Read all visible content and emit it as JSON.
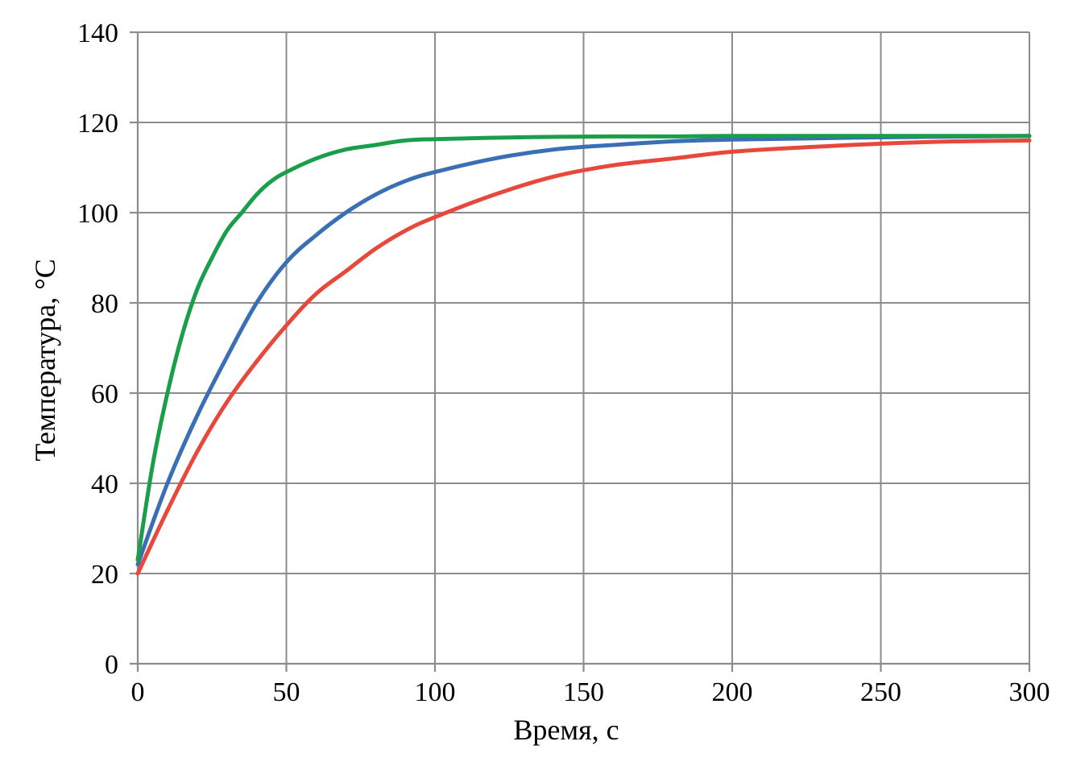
{
  "chart_data": {
    "type": "line",
    "title": "",
    "xlabel": "Время, с",
    "ylabel": "Температура, °C",
    "xlim": [
      0,
      300
    ],
    "ylim": [
      0,
      140
    ],
    "x_ticks": [
      0,
      50,
      100,
      150,
      200,
      250,
      300
    ],
    "y_ticks": [
      0,
      20,
      40,
      60,
      80,
      100,
      120,
      140
    ],
    "grid": true,
    "legend": "none",
    "series": [
      {
        "color": "#1a9e4a",
        "x": [
          0,
          5,
          10,
          15,
          20,
          25,
          30,
          35,
          40,
          45,
          50,
          60,
          70,
          80,
          90,
          100,
          120,
          140,
          160,
          180,
          200,
          250,
          300
        ],
        "values": [
          23,
          44,
          60,
          73,
          83,
          90,
          96,
          100,
          104,
          107,
          109,
          112,
          114,
          115,
          116,
          116.3,
          116.6,
          116.8,
          116.9,
          116.9,
          117,
          117,
          117
        ]
      },
      {
        "color": "#3a6fb5",
        "x": [
          0,
          10,
          20,
          30,
          40,
          50,
          60,
          70,
          80,
          90,
          100,
          120,
          140,
          160,
          180,
          200,
          250,
          300
        ],
        "values": [
          22,
          40,
          55,
          68,
          80,
          89,
          95,
          100,
          104,
          107,
          109,
          112,
          114,
          115,
          115.8,
          116.2,
          116.7,
          117
        ]
      },
      {
        "color": "#e8483c",
        "x": [
          0,
          10,
          20,
          30,
          40,
          50,
          60,
          70,
          80,
          90,
          100,
          120,
          140,
          160,
          180,
          200,
          225,
          250,
          275,
          300
        ],
        "values": [
          20,
          34,
          47,
          58,
          67,
          75,
          82,
          87,
          92,
          96,
          99,
          104,
          108,
          110.5,
          112,
          113.5,
          114.5,
          115.3,
          115.8,
          116
        ]
      }
    ]
  }
}
